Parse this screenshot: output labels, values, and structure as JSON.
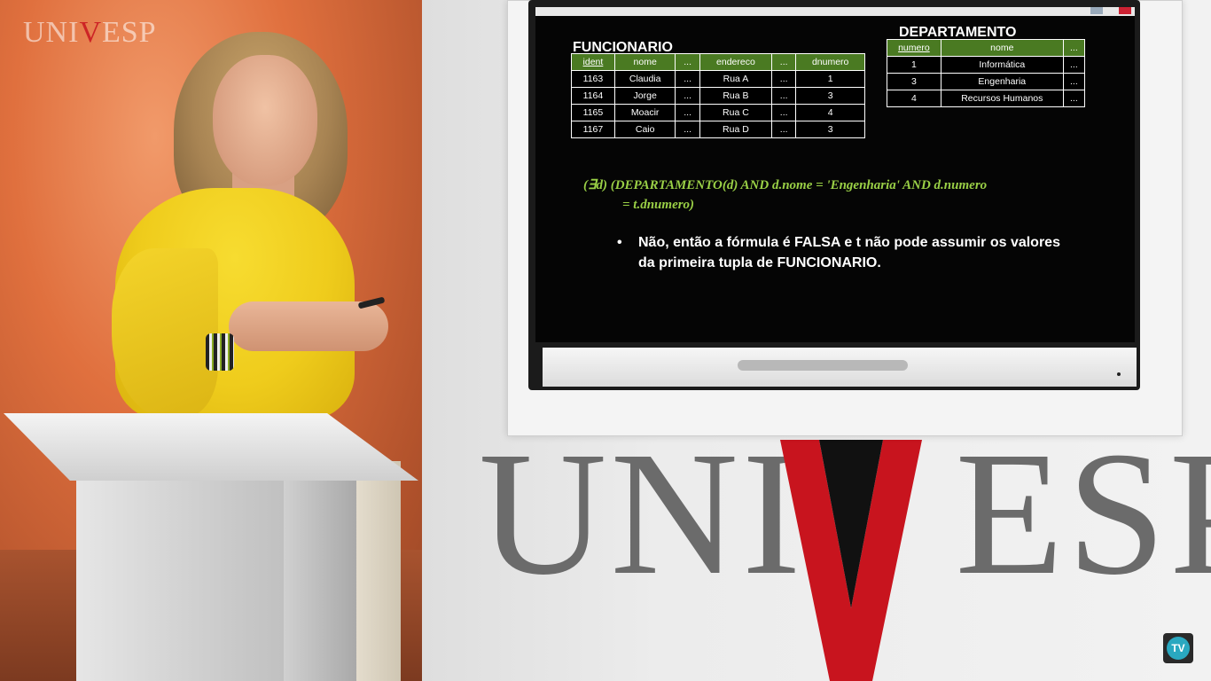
{
  "watermark": {
    "pre": "UNI",
    "v": "V",
    "post": "ESP"
  },
  "wall_logo": {
    "pre": "UNI",
    "post": "ESP"
  },
  "slide": {
    "funcionario": {
      "title": "FUNCIONARIO",
      "headers": [
        "ident",
        "nome",
        "...",
        "endereco",
        "...",
        "dnumero"
      ],
      "rows": [
        [
          "1163",
          "Claudia",
          "...",
          "Rua A",
          "...",
          "1"
        ],
        [
          "1164",
          "Jorge",
          "...",
          "Rua B",
          "...",
          "3"
        ],
        [
          "1165",
          "Moacir",
          "...",
          "Rua C",
          "...",
          "4"
        ],
        [
          "1167",
          "Caio",
          "...",
          "Rua D",
          "...",
          "3"
        ]
      ]
    },
    "departamento": {
      "title": "DEPARTAMENTO",
      "headers": [
        "numero",
        "nome",
        "..."
      ],
      "rows": [
        [
          "1",
          "Informática",
          "..."
        ],
        [
          "3",
          "Engenharia",
          "..."
        ],
        [
          "4",
          "Recursos Humanos",
          "..."
        ]
      ]
    },
    "formula": {
      "line1": "(∃d) (DEPARTAMENTO(d) AND d.nome = 'Engenharia' AND d.numero",
      "line2": "= t.dnumero)"
    },
    "bullet": {
      "symbol": "•",
      "text": "Não, então a fórmula é FALSA e t não pode assumir os valores da primeira tupla de FUNCIONARIO."
    }
  },
  "tv_badge": {
    "label": "TV"
  },
  "colors": {
    "header_green": "#4a7a22",
    "formula_green": "#9ad046",
    "logo_red": "#c8141e"
  }
}
